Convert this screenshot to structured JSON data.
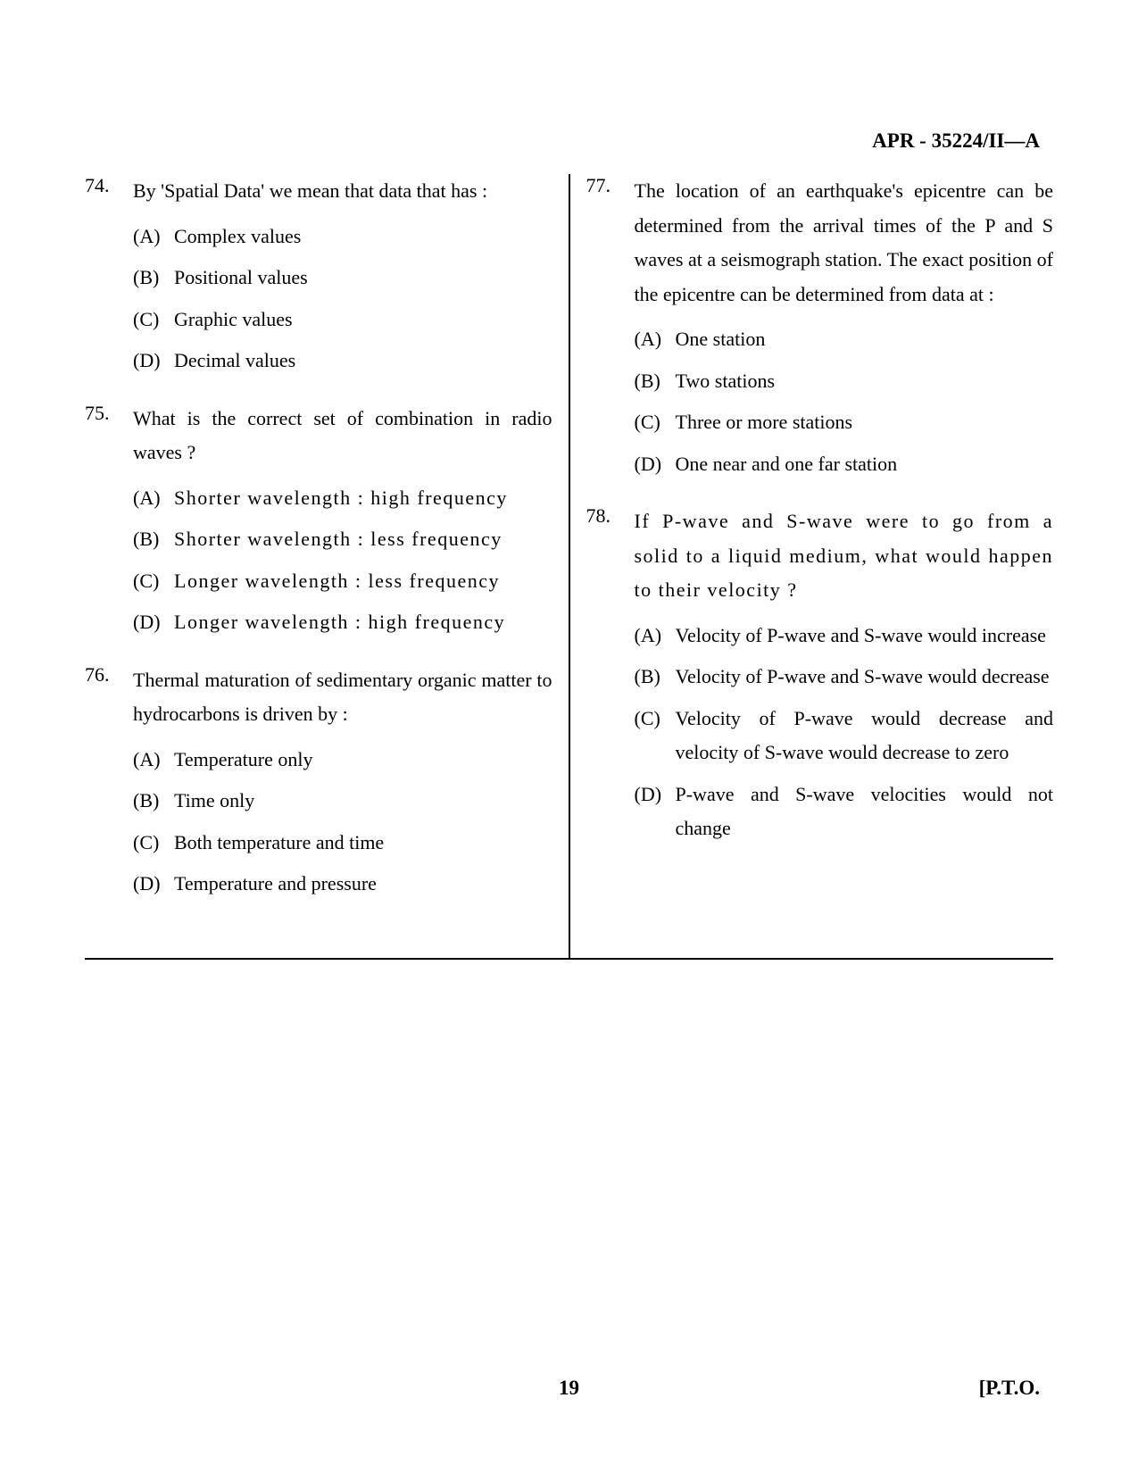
{
  "header": "APR - 35224/II—A",
  "footer": {
    "page": "19",
    "pto": "[P.T.O."
  },
  "columns": {
    "left": [
      {
        "num": "74.",
        "text": "By 'Spatial Data' we mean that data that has :",
        "options": [
          {
            "label": "(A)",
            "text": "Complex values"
          },
          {
            "label": "(B)",
            "text": "Positional values"
          },
          {
            "label": "(C)",
            "text": "Graphic values"
          },
          {
            "label": "(D)",
            "text": "Decimal values"
          }
        ]
      },
      {
        "num": "75.",
        "text": "What is the correct set of combination in radio waves ?",
        "options": [
          {
            "label": "(A)",
            "text": "Shorter wavelength : high frequency",
            "spaced": true
          },
          {
            "label": "(B)",
            "text": "Shorter wavelength : less frequency",
            "spaced": true
          },
          {
            "label": "(C)",
            "text": "Longer wavelength : less frequency",
            "spaced": true
          },
          {
            "label": "(D)",
            "text": "Longer wavelength : high frequency",
            "spaced": true
          }
        ]
      },
      {
        "num": "76.",
        "text": "Thermal maturation of sedimentary organic matter to hydrocarbons is driven by :",
        "options": [
          {
            "label": "(A)",
            "text": "Temperature only"
          },
          {
            "label": "(B)",
            "text": "Time only"
          },
          {
            "label": "(C)",
            "text": "Both temperature and time"
          },
          {
            "label": "(D)",
            "text": "Temperature and pressure"
          }
        ]
      }
    ],
    "right": [
      {
        "num": "77.",
        "text": "The location of an earthquake's epicentre can be determined from the arrival times of the P and S waves at a seismograph station. The exact position of the epicentre can be determined from data at :",
        "options": [
          {
            "label": "(A)",
            "text": "One station"
          },
          {
            "label": "(B)",
            "text": "Two stations"
          },
          {
            "label": "(C)",
            "text": "Three or more stations"
          },
          {
            "label": "(D)",
            "text": "One near and one far station"
          }
        ]
      },
      {
        "num": "78.",
        "text": "If P-wave and S-wave were to go from a solid to a liquid medium, what would happen to their velocity ?",
        "text_spaced": true,
        "options": [
          {
            "label": "(A)",
            "text": "Velocity of P-wave and S-wave would increase"
          },
          {
            "label": "(B)",
            "text": "Velocity of P-wave and S-wave would decrease"
          },
          {
            "label": "(C)",
            "text": "Velocity of P-wave would decrease and velocity of S-wave would decrease to zero"
          },
          {
            "label": "(D)",
            "text": "P-wave and S-wave velocities would not change"
          }
        ]
      }
    ]
  }
}
